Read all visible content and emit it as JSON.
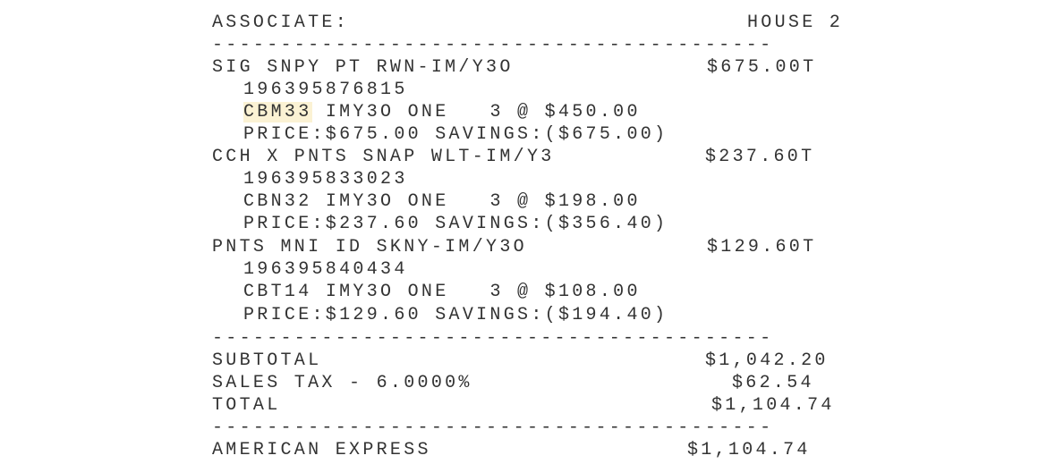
{
  "receipt": {
    "top_rule": "------------",
    "associate_label": "ASSOCIATE:",
    "associate_value": "HOUSE 2",
    "rule": "-----------------------------------------",
    "items": [
      {
        "name": "SIG SNPY PT RWN-IM/Y3O",
        "amount": "$675.00T",
        "upc": "196395876815",
        "code": "CBM33",
        "detail": " IMY3O ONE   3 @ $450.00",
        "price_line": "PRICE:$675.00 SAVINGS:($675.00)"
      },
      {
        "name": "CCH X PNTS SNAP WLT-IM/Y3",
        "amount": "$237.60T",
        "upc": "196395833023",
        "code": "CBN32",
        "detail": " IMY3O ONE   3 @ $198.00",
        "price_line": "PRICE:$237.60 SAVINGS:($356.40)"
      },
      {
        "name": "PNTS MNI ID SKNY-IM/Y3O",
        "amount": "$129.60T",
        "upc": "196395840434",
        "code": "CBT14",
        "detail": " IMY3O ONE   3 @ $108.00",
        "price_line": "PRICE:$129.60 SAVINGS:($194.40)"
      }
    ],
    "subtotal_label": "SUBTOTAL",
    "subtotal": "$1,042.20",
    "tax_label": "SALES TAX - 6.0000%",
    "tax": "$62.54",
    "total_label": "TOTAL",
    "total": "$1,104.74",
    "payment_label": "AMERICAN EXPRESS",
    "payment": "$1,104.74"
  },
  "colors": {
    "highlight": "#fbf2d4",
    "text": "#333333"
  }
}
